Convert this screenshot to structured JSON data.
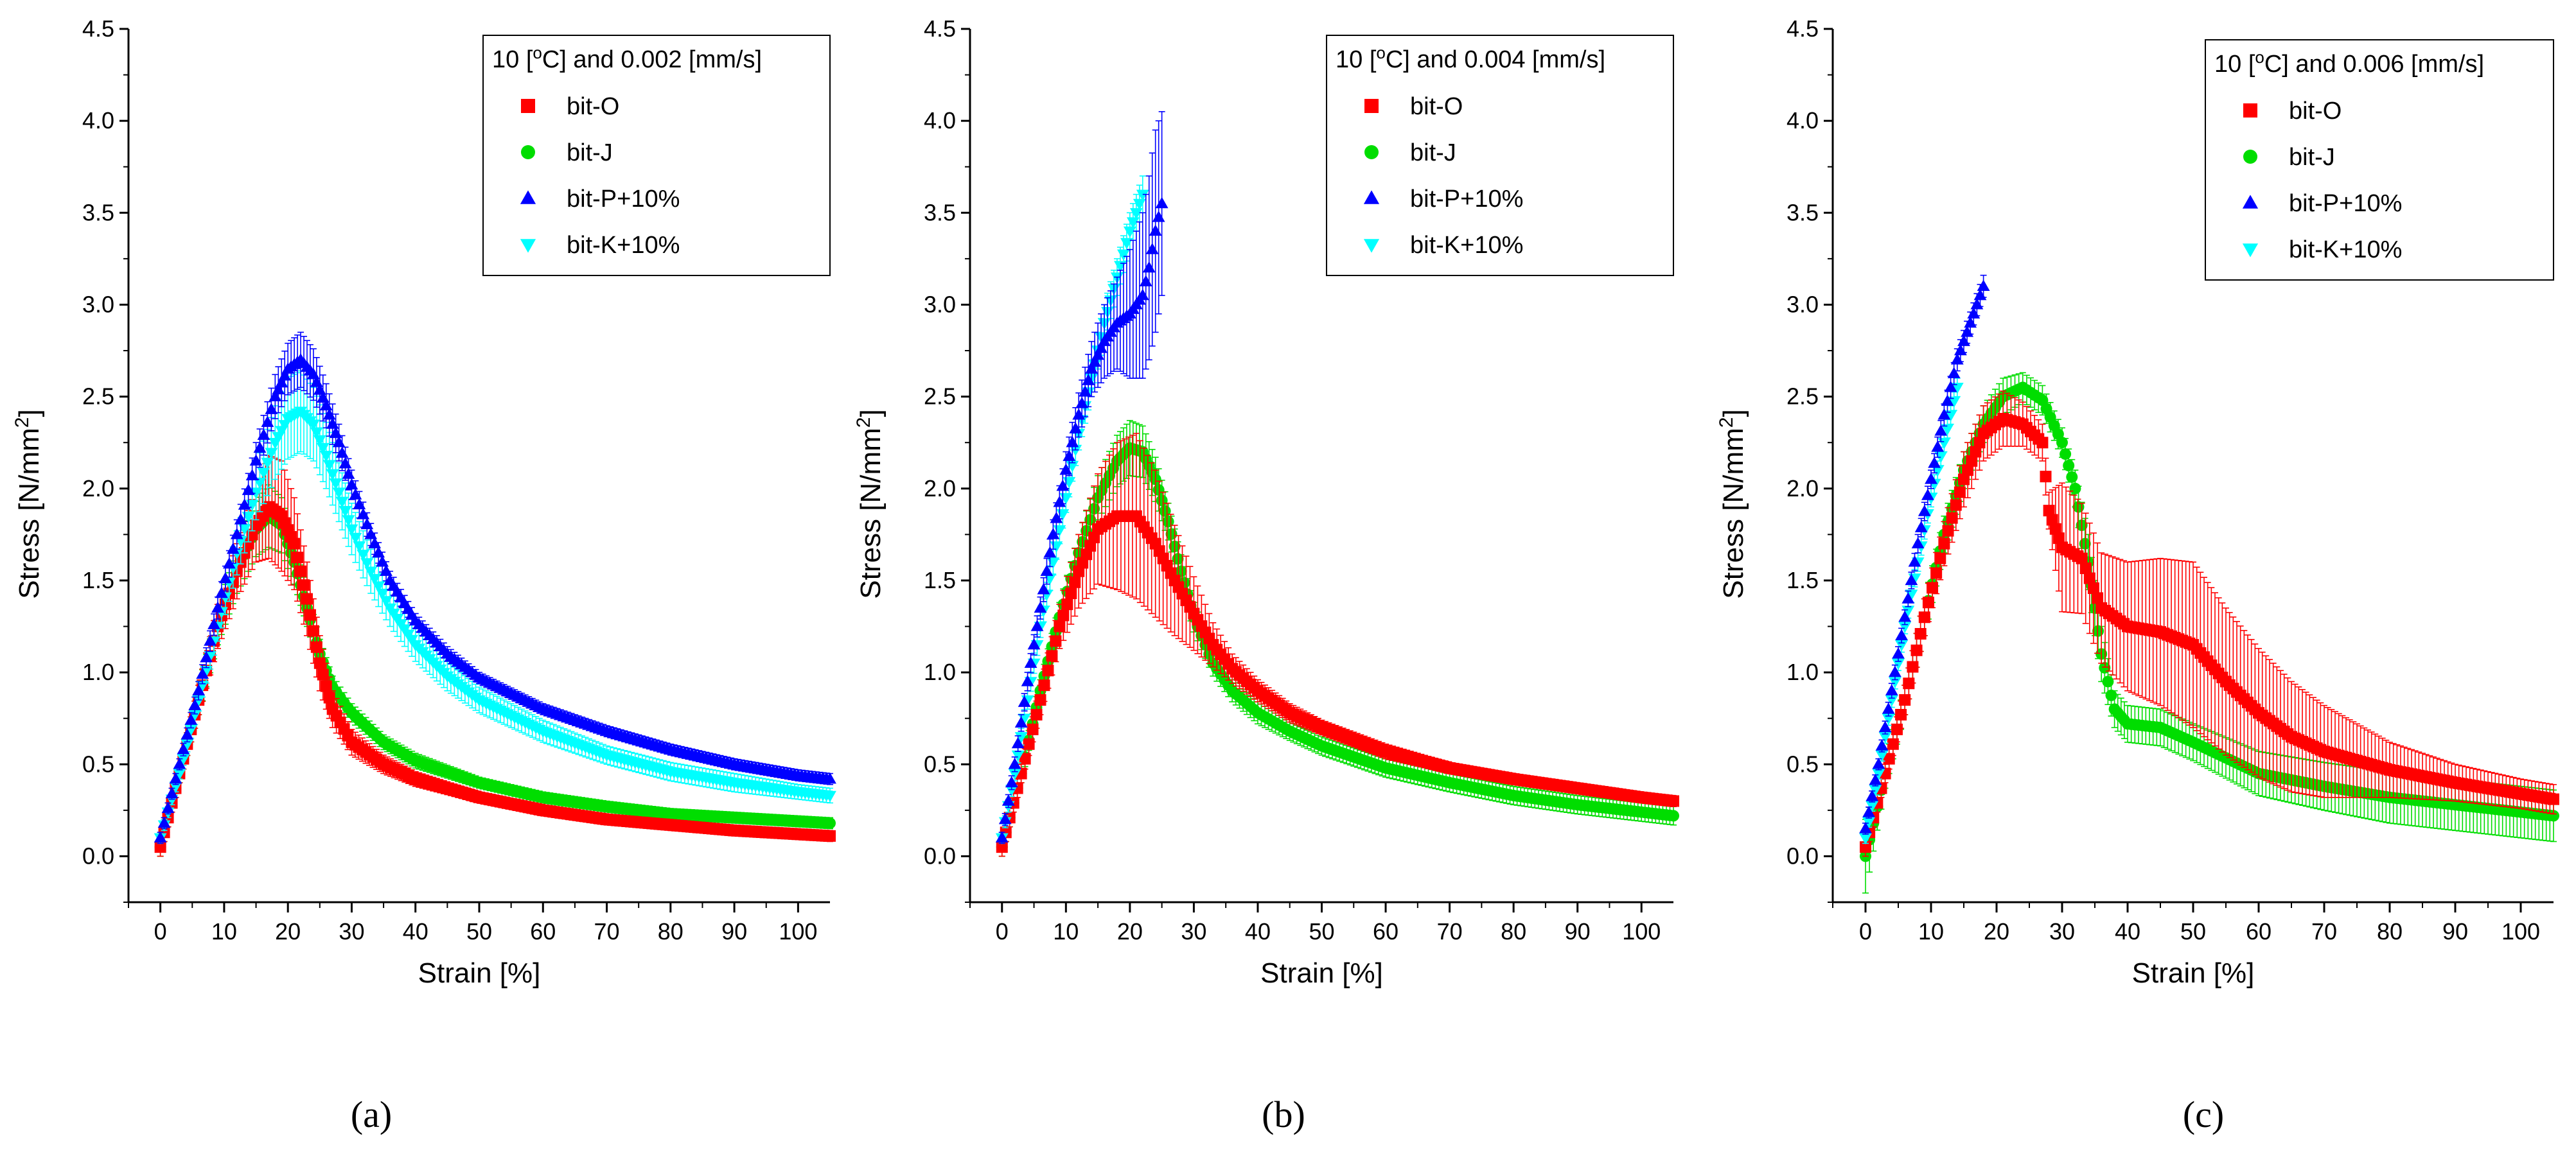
{
  "colors": {
    "bit-O": "#ff0000",
    "bit-J": "#00dd00",
    "bit-P+10%": "#0000ff",
    "bit-K+10%": "#00ffff"
  },
  "chart_data": [
    {
      "type": "scatter",
      "panel_label": "(a)",
      "legend_title_pre": "10 [",
      "legend_title_sup": "o",
      "legend_title_post": "C] and 0.002 [mm/s]",
      "xlabel": "Strain [%]",
      "ylabel_pre": "Stress [N/mm",
      "ylabel_sup": "2",
      "ylabel_post": "]",
      "xlim": [
        -5,
        105
      ],
      "ylim": [
        -0.25,
        4.5
      ],
      "xticks": [
        0,
        10,
        20,
        30,
        40,
        50,
        60,
        70,
        80,
        90,
        100
      ],
      "yticks": [
        0.0,
        0.5,
        1.0,
        1.5,
        2.0,
        2.5,
        3.0,
        3.5,
        4.0,
        4.5
      ],
      "xtick_labels": [
        "0",
        "10",
        "20",
        "30",
        "40",
        "50",
        "60",
        "70",
        "80",
        "90",
        "100"
      ],
      "ytick_labels": [
        "0.0",
        "0.5",
        "1.0",
        "1.5",
        "2.0",
        "2.5",
        "3.0",
        "3.5",
        "4.0",
        "4.5"
      ],
      "series": [
        {
          "name": "bit-O",
          "marker": "square",
          "x": [
            0,
            3,
            6,
            9,
            12,
            15,
            17,
            19,
            21,
            23,
            25,
            27,
            30,
            35,
            40,
            50,
            60,
            70,
            80,
            90,
            100,
            105
          ],
          "y": [
            0.05,
            0.45,
            0.85,
            1.25,
            1.55,
            1.8,
            1.9,
            1.85,
            1.7,
            1.4,
            1.05,
            0.8,
            0.62,
            0.5,
            0.42,
            0.32,
            0.25,
            0.2,
            0.17,
            0.14,
            0.12,
            0.11
          ],
          "err": [
            0.05,
            0.05,
            0.08,
            0.12,
            0.15,
            0.2,
            0.28,
            0.3,
            0.25,
            0.2,
            0.15,
            0.1,
            0.07,
            0.05,
            0.04,
            0.03,
            0.03,
            0.03,
            0.03,
            0.03,
            0.03,
            0.03
          ]
        },
        {
          "name": "bit-J",
          "marker": "circle",
          "x": [
            0,
            3,
            6,
            9,
            12,
            15,
            17,
            19,
            21,
            23,
            25,
            27,
            30,
            35,
            40,
            50,
            60,
            70,
            80,
            90,
            100,
            105
          ],
          "y": [
            0.05,
            0.45,
            0.85,
            1.25,
            1.55,
            1.78,
            1.85,
            1.8,
            1.6,
            1.35,
            1.1,
            0.92,
            0.78,
            0.62,
            0.52,
            0.4,
            0.32,
            0.27,
            0.23,
            0.21,
            0.19,
            0.18
          ],
          "err": [
            0.05,
            0.05,
            0.08,
            0.1,
            0.12,
            0.15,
            0.17,
            0.15,
            0.12,
            0.1,
            0.08,
            0.06,
            0.05,
            0.04,
            0.04,
            0.03,
            0.03,
            0.03,
            0.03,
            0.03,
            0.03,
            0.03
          ]
        },
        {
          "name": "bit-P+10%",
          "marker": "triangle-up",
          "x": [
            0,
            3,
            6,
            9,
            12,
            15,
            18,
            20,
            22,
            24,
            26,
            28,
            30,
            33,
            36,
            40,
            45,
            50,
            60,
            70,
            80,
            90,
            100,
            105
          ],
          "y": [
            0.1,
            0.5,
            0.9,
            1.35,
            1.75,
            2.15,
            2.5,
            2.65,
            2.7,
            2.62,
            2.45,
            2.25,
            2.02,
            1.75,
            1.5,
            1.28,
            1.1,
            0.97,
            0.8,
            0.68,
            0.58,
            0.5,
            0.44,
            0.42
          ],
          "err": [
            0.03,
            0.03,
            0.05,
            0.06,
            0.08,
            0.1,
            0.12,
            0.14,
            0.15,
            0.14,
            0.12,
            0.1,
            0.08,
            0.06,
            0.05,
            0.04,
            0.04,
            0.03,
            0.03,
            0.03,
            0.03,
            0.03,
            0.03,
            0.03
          ]
        },
        {
          "name": "bit-K+10%",
          "marker": "triangle-down",
          "x": [
            0,
            3,
            6,
            9,
            12,
            15,
            18,
            20,
            22,
            24,
            26,
            28,
            30,
            33,
            36,
            40,
            45,
            50,
            60,
            70,
            80,
            90,
            100,
            105
          ],
          "y": [
            0.1,
            0.45,
            0.85,
            1.25,
            1.65,
            1.98,
            2.25,
            2.38,
            2.42,
            2.35,
            2.18,
            1.98,
            1.78,
            1.55,
            1.35,
            1.15,
            0.98,
            0.85,
            0.68,
            0.55,
            0.46,
            0.4,
            0.35,
            0.33
          ],
          "err": [
            0.03,
            0.03,
            0.06,
            0.08,
            0.12,
            0.15,
            0.2,
            0.22,
            0.22,
            0.2,
            0.18,
            0.16,
            0.14,
            0.12,
            0.1,
            0.09,
            0.08,
            0.07,
            0.06,
            0.05,
            0.05,
            0.05,
            0.04,
            0.04
          ]
        }
      ]
    },
    {
      "type": "scatter",
      "panel_label": "(b)",
      "legend_title_pre": "10 [",
      "legend_title_sup": "o",
      "legend_title_post": "C] and 0.004 [mm/s]",
      "xlabel": "Strain [%]",
      "ylabel_pre": "Stress [N/mm",
      "ylabel_sup": "2",
      "ylabel_post": "]",
      "xlim": [
        -5,
        105
      ],
      "ylim": [
        -0.25,
        4.5
      ],
      "xticks": [
        0,
        10,
        20,
        30,
        40,
        50,
        60,
        70,
        80,
        90,
        100
      ],
      "yticks": [
        0.0,
        0.5,
        1.0,
        1.5,
        2.0,
        2.5,
        3.0,
        3.5,
        4.0,
        4.5
      ],
      "xtick_labels": [
        "0",
        "10",
        "20",
        "30",
        "40",
        "50",
        "60",
        "70",
        "80",
        "90",
        "100"
      ],
      "ytick_labels": [
        "0.0",
        "0.5",
        "1.0",
        "1.5",
        "2.0",
        "2.5",
        "3.0",
        "3.5",
        "4.0",
        "4.5"
      ],
      "series": [
        {
          "name": "bit-O",
          "marker": "square",
          "x": [
            0,
            3,
            6,
            9,
            12,
            15,
            18,
            21,
            24,
            27,
            30,
            33,
            36,
            40,
            45,
            50,
            60,
            70,
            80,
            90,
            100,
            105
          ],
          "y": [
            0.05,
            0.45,
            0.85,
            1.25,
            1.55,
            1.78,
            1.85,
            1.85,
            1.7,
            1.5,
            1.32,
            1.15,
            1.02,
            0.9,
            0.78,
            0.7,
            0.57,
            0.48,
            0.42,
            0.37,
            0.32,
            0.3
          ],
          "err": [
            0.05,
            0.05,
            0.08,
            0.12,
            0.2,
            0.3,
            0.4,
            0.45,
            0.4,
            0.3,
            0.2,
            0.12,
            0.08,
            0.06,
            0.05,
            0.04,
            0.04,
            0.03,
            0.03,
            0.03,
            0.03,
            0.03
          ]
        },
        {
          "name": "bit-J",
          "marker": "circle",
          "x": [
            0,
            3,
            6,
            9,
            12,
            15,
            18,
            20,
            22,
            24,
            26,
            28,
            30,
            33,
            36,
            40,
            45,
            50,
            60,
            70,
            80,
            90,
            100,
            105
          ],
          "y": [
            0.05,
            0.45,
            0.9,
            1.3,
            1.65,
            1.95,
            2.15,
            2.22,
            2.2,
            2.05,
            1.82,
            1.55,
            1.3,
            1.05,
            0.9,
            0.78,
            0.68,
            0.6,
            0.48,
            0.4,
            0.33,
            0.28,
            0.24,
            0.22
          ],
          "err": [
            0.05,
            0.05,
            0.06,
            0.08,
            0.1,
            0.12,
            0.14,
            0.15,
            0.14,
            0.12,
            0.1,
            0.09,
            0.08,
            0.07,
            0.06,
            0.06,
            0.05,
            0.05,
            0.05,
            0.05,
            0.05,
            0.05,
            0.05,
            0.05
          ]
        },
        {
          "name": "bit-P+10%",
          "marker": "triangle-up",
          "x": [
            0,
            2,
            4,
            6,
            8,
            10,
            12,
            14,
            16,
            18,
            20,
            22,
            23,
            24,
            25
          ],
          "y": [
            0.1,
            0.5,
            0.95,
            1.35,
            1.75,
            2.1,
            2.4,
            2.65,
            2.8,
            2.9,
            2.95,
            3.05,
            3.2,
            3.4,
            3.55
          ],
          "err": [
            0.03,
            0.04,
            0.05,
            0.06,
            0.08,
            0.1,
            0.12,
            0.15,
            0.2,
            0.25,
            0.35,
            0.45,
            0.5,
            0.55,
            0.5
          ]
        },
        {
          "name": "bit-K+10%",
          "marker": "triangle-down",
          "x": [
            0,
            2,
            4,
            6,
            8,
            10,
            12,
            14,
            16,
            18,
            20,
            21,
            22
          ],
          "y": [
            0.1,
            0.45,
            0.85,
            1.25,
            1.6,
            1.95,
            2.3,
            2.6,
            2.9,
            3.15,
            3.4,
            3.5,
            3.6
          ],
          "err": [
            0.03,
            0.04,
            0.05,
            0.06,
            0.07,
            0.08,
            0.09,
            0.1,
            0.1,
            0.1,
            0.1,
            0.1,
            0.1
          ]
        }
      ]
    },
    {
      "type": "scatter",
      "panel_label": "(c)",
      "legend_title_pre": "10 [",
      "legend_title_sup": "o",
      "legend_title_post": "C] and 0.006 [mm/s]",
      "xlabel": "Strain [%]",
      "ylabel_pre": "Stress [N/mm",
      "ylabel_sup": "2",
      "ylabel_post": "]",
      "xlim": [
        -5,
        105
      ],
      "ylim": [
        -0.25,
        4.5
      ],
      "xticks": [
        0,
        10,
        20,
        30,
        40,
        50,
        60,
        70,
        80,
        90,
        100
      ],
      "yticks": [
        0.0,
        0.5,
        1.0,
        1.5,
        2.0,
        2.5,
        3.0,
        3.5,
        4.0,
        4.5
      ],
      "xtick_labels": [
        "0",
        "10",
        "20",
        "30",
        "40",
        "50",
        "60",
        "70",
        "80",
        "90",
        "100"
      ],
      "ytick_labels": [
        "0.0",
        "0.5",
        "1.0",
        "1.5",
        "2.0",
        "2.5",
        "3.0",
        "3.5",
        "4.0",
        "4.5"
      ],
      "series": [
        {
          "name": "bit-O",
          "marker": "square",
          "x": [
            0,
            3,
            6,
            9,
            12,
            15,
            18,
            21,
            24,
            27,
            28,
            30,
            33,
            36,
            40,
            45,
            50,
            55,
            60,
            65,
            70,
            80,
            90,
            100,
            105
          ],
          "y": [
            0.05,
            0.45,
            0.85,
            1.3,
            1.7,
            2.05,
            2.3,
            2.38,
            2.35,
            2.25,
            1.88,
            1.68,
            1.62,
            1.35,
            1.25,
            1.22,
            1.15,
            0.95,
            0.78,
            0.65,
            0.57,
            0.47,
            0.4,
            0.34,
            0.31
          ],
          "err": [
            0.05,
            0.05,
            0.08,
            0.1,
            0.12,
            0.15,
            0.15,
            0.15,
            0.12,
            0.1,
            0.1,
            0.35,
            0.3,
            0.3,
            0.35,
            0.4,
            0.45,
            0.4,
            0.35,
            0.3,
            0.25,
            0.15,
            0.1,
            0.08,
            0.08
          ]
        },
        {
          "name": "bit-J",
          "marker": "circle",
          "x": [
            0,
            3,
            6,
            9,
            12,
            15,
            18,
            21,
            24,
            27,
            30,
            32,
            34,
            36,
            38,
            40,
            45,
            50,
            60,
            70,
            80,
            90,
            100,
            105
          ],
          "y": [
            0.0,
            0.45,
            0.85,
            1.3,
            1.75,
            2.1,
            2.35,
            2.5,
            2.55,
            2.48,
            2.25,
            2.0,
            1.6,
            1.1,
            0.8,
            0.72,
            0.7,
            0.62,
            0.45,
            0.38,
            0.32,
            0.28,
            0.24,
            0.22
          ],
          "err": [
            0.2,
            0.08,
            0.08,
            0.1,
            0.1,
            0.1,
            0.1,
            0.1,
            0.08,
            0.08,
            0.08,
            0.1,
            0.15,
            0.15,
            0.1,
            0.1,
            0.1,
            0.1,
            0.12,
            0.13,
            0.14,
            0.14,
            0.14,
            0.14
          ]
        },
        {
          "name": "bit-P+10%",
          "marker": "triangle-up",
          "x": [
            0,
            2,
            4,
            6,
            8,
            10,
            12,
            14,
            16,
            18
          ],
          "y": [
            0.15,
            0.5,
            0.9,
            1.3,
            1.7,
            2.05,
            2.4,
            2.7,
            2.9,
            3.1
          ],
          "err": [
            0.03,
            0.03,
            0.04,
            0.04,
            0.05,
            0.05,
            0.06,
            0.06,
            0.06,
            0.06
          ]
        },
        {
          "name": "bit-K+10%",
          "marker": "triangle-down",
          "x": [
            0,
            2,
            4,
            6,
            8,
            10,
            12,
            14
          ],
          "y": [
            0.1,
            0.45,
            0.85,
            1.25,
            1.6,
            1.95,
            2.25,
            2.55
          ],
          "err": [
            0.03,
            0.03,
            0.04,
            0.04,
            0.05,
            0.05,
            0.05,
            0.05
          ]
        }
      ]
    }
  ]
}
